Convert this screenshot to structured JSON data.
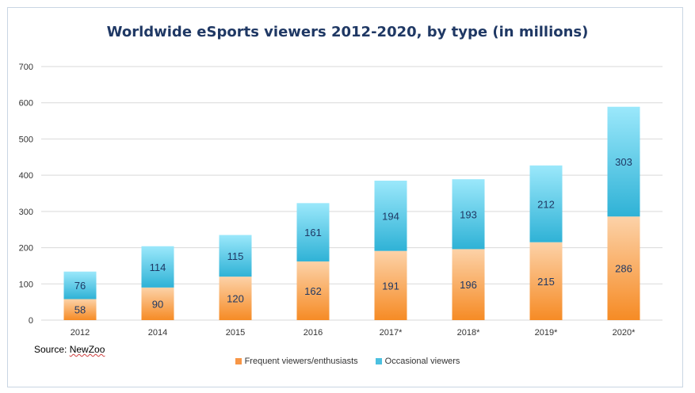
{
  "chart_data": {
    "type": "bar",
    "stacked": true,
    "title": "Worldwide eSports viewers 2012-2020, by type (in millions)",
    "categories": [
      "2012",
      "2014",
      "2015",
      "2016",
      "2017*",
      "2018*",
      "2019*",
      "2020*"
    ],
    "series": [
      {
        "name": "Frequent viewers/enthusiasts",
        "values": [
          58,
          90,
          120,
          162,
          191,
          196,
          215,
          286
        ],
        "color": "#f79646"
      },
      {
        "name": "Occasional viewers",
        "values": [
          76,
          114,
          115,
          161,
          194,
          193,
          212,
          303
        ],
        "color": "#4bc0e0"
      }
    ],
    "ylim": [
      0,
      700
    ],
    "yticks": [
      0,
      100,
      200,
      300,
      400,
      500,
      600,
      700
    ],
    "grid": true,
    "legend": "bottom"
  },
  "source": {
    "label": "Source: ",
    "name": "NewZoo"
  }
}
